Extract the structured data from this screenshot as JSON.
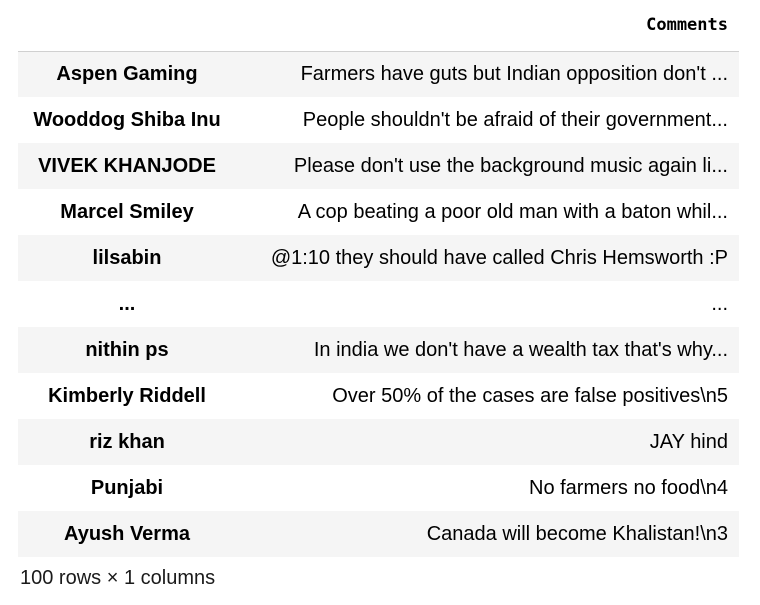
{
  "table": {
    "index_header": "",
    "column_header": "Comments",
    "rows": [
      {
        "index": "Aspen Gaming",
        "comment": "Farmers have guts but Indian opposition don't ..."
      },
      {
        "index": "Wooddog Shiba Inu",
        "comment": "People shouldn't be afraid of their government..."
      },
      {
        "index": "VIVEK KHANJODE",
        "comment": "Please don't use the background music again li..."
      },
      {
        "index": "Marcel Smiley",
        "comment": "A cop beating a poor old man with a baton whil..."
      },
      {
        "index": "lilsabin",
        "comment": "@1:10 they should have called Chris Hemsworth :P"
      },
      {
        "index": "...",
        "comment": "..."
      },
      {
        "index": "nithin ps",
        "comment": "In india we don't have a wealth tax that's why..."
      },
      {
        "index": "Kimberly Riddell",
        "comment": "Over 50% of the cases are false positives\\n5"
      },
      {
        "index": "riz khan",
        "comment": "JAY hind"
      },
      {
        "index": "Punjabi",
        "comment": "No farmers no food\\n4"
      },
      {
        "index": "Ayush Verma",
        "comment": "Canada will become Khalistan!\\n3"
      }
    ]
  },
  "footer": {
    "shape_text": "100 rows × 1 columns"
  }
}
